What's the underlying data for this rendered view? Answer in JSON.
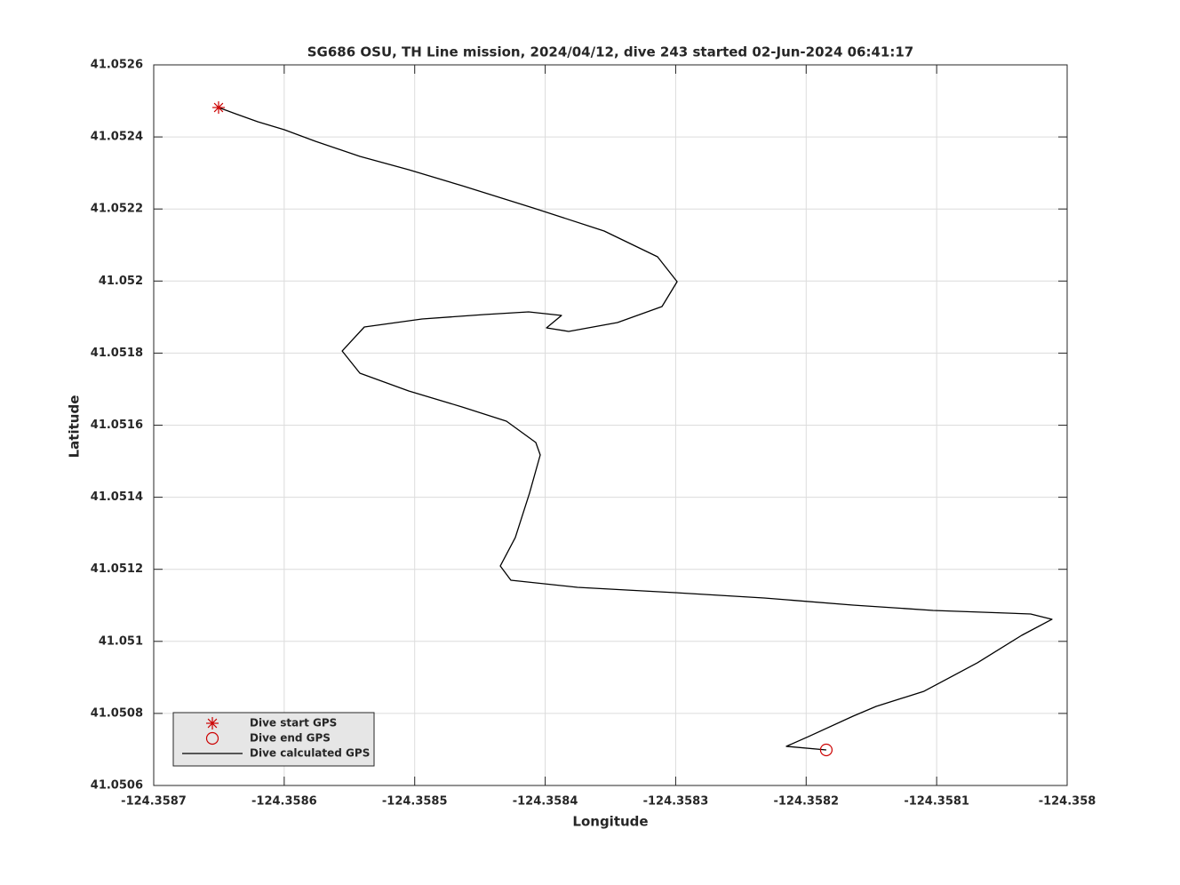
{
  "chart_data": {
    "type": "line",
    "title": "SG686 OSU, TH Line mission, 2024/04/12, dive 243 started 02-Jun-2024 06:41:17",
    "xlabel": "Longitude",
    "ylabel": "Latitude",
    "xlim": [
      -124.3587,
      -124.358
    ],
    "ylim": [
      41.0506,
      41.0526
    ],
    "xticks": [
      -124.3587,
      -124.3586,
      -124.3585,
      -124.3584,
      -124.3583,
      -124.3582,
      -124.3581,
      -124.358
    ],
    "yticks": [
      41.0506,
      41.0508,
      41.051,
      41.0512,
      41.0514,
      41.0516,
      41.0518,
      41.052,
      41.0522,
      41.0524,
      41.0526
    ],
    "grid": true,
    "legend": "lower left",
    "series": [
      {
        "name": "Dive start GPS",
        "color": "#cc0000",
        "marker": "*",
        "x": [
          -124.3586503
        ],
        "values": [
          41.0524816
        ]
      },
      {
        "name": "Dive end GPS",
        "color": "#cc0000",
        "marker": "o",
        "x": [
          -124.3581846
        ],
        "values": [
          41.0506987
        ]
      },
      {
        "name": "Dive calculated GPS",
        "color": "#000000",
        "x": [
          -124.3586503,
          -124.3586374,
          -124.3586203,
          -124.3585999,
          -124.3585761,
          -124.358542,
          -124.3585046,
          -124.3584637,
          -124.3584093,
          -124.3583548,
          -124.3583139,
          -124.3582989,
          -124.3583105,
          -124.3583446,
          -124.358382,
          -124.358399,
          -124.3583875,
          -124.3584127,
          -124.3584467,
          -124.3584944,
          -124.3585386,
          -124.3585556,
          -124.358542,
          -124.3585046,
          -124.3584637,
          -124.3584297,
          -124.3584072,
          -124.3584038,
          -124.358412,
          -124.3584229,
          -124.3584344,
          -124.3584263,
          -124.3583752,
          -124.3583003,
          -124.3582322,
          -124.3581641,
          -124.3581028,
          -124.358028,
          -124.3580116,
          -124.3580348,
          -124.3580688,
          -124.3581097,
          -124.3581464,
          -124.3581641,
          -124.3581982,
          -124.3582152,
          -124.3581846
        ],
        "values": [
          41.0524816,
          41.0524644,
          41.0524422,
          41.05242,
          41.0523879,
          41.052346,
          41.052309,
          41.0522646,
          41.052203,
          41.0521389,
          41.0520673,
          41.0519983,
          41.0519292,
          41.0518849,
          41.0518602,
          41.0518701,
          41.0519046,
          41.0519145,
          41.0519071,
          41.0518947,
          41.0518725,
          41.0518059,
          41.0517443,
          41.051695,
          41.0516506,
          41.0516111,
          41.0515519,
          41.0515174,
          41.0514114,
          41.0512881,
          41.0512092,
          41.0511697,
          41.05115,
          41.0511352,
          41.0511204,
          41.0511007,
          41.0510859,
          41.051076,
          41.0510612,
          41.0510168,
          41.0509404,
          41.0508615,
          41.0508195,
          41.0507924,
          41.0507357,
          41.0507086,
          41.0506987
        ]
      }
    ]
  }
}
